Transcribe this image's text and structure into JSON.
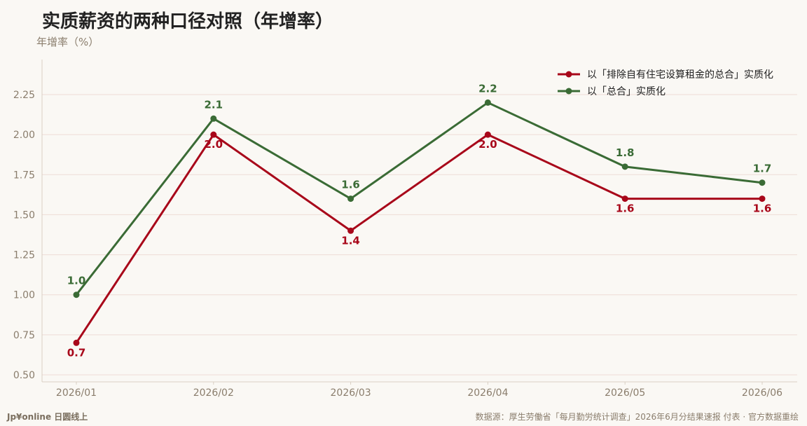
{
  "page": {
    "title": "实质薪资的两种口径对照（年增率）",
    "y_axis_label": "年增率（%）",
    "logo": "Jp¥online 日圆线上",
    "source": "数据源：厚生劳働省「每月勤労统计调查」2026年6月分结果速报 付表 · 官方数据重绘"
  },
  "colors": {
    "series_red": "#a8071a",
    "series_green": "#3a6b35",
    "grid": "#eedcd6",
    "axis_text": "#8a7d6c",
    "background": "#faf8f4"
  },
  "chart_data": {
    "type": "line",
    "title": "实质薪资的两种口径对照（年增率）",
    "xlabel": "",
    "ylabel": "年增率（%）",
    "categories": [
      "2026/01",
      "2026/02",
      "2026/03",
      "2026/04",
      "2026/05",
      "2026/06"
    ],
    "ylim": [
      0.45,
      2.45
    ],
    "yticks": [
      "0.50",
      "0.75",
      "1.00",
      "1.25",
      "1.50",
      "1.75",
      "2.00",
      "2.25"
    ],
    "grid": true,
    "legend_position": "top-right",
    "series": [
      {
        "name": "以「排除自有住宅设算租金的总合」实质化",
        "values": [
          0.7,
          2.0,
          1.4,
          2.0,
          1.6,
          1.6
        ],
        "labels": [
          "0.7",
          "2.0",
          "1.4",
          "2.0",
          "1.6",
          "1.6"
        ],
        "color": "#a8071a",
        "label_position": "below"
      },
      {
        "name": "以「总合」实质化",
        "values": [
          1.0,
          2.1,
          1.6,
          2.2,
          1.8,
          1.7
        ],
        "labels": [
          "1.0",
          "2.1",
          "1.6",
          "2.2",
          "1.8",
          "1.7"
        ],
        "color": "#3a6b35",
        "label_position": "above"
      }
    ]
  }
}
